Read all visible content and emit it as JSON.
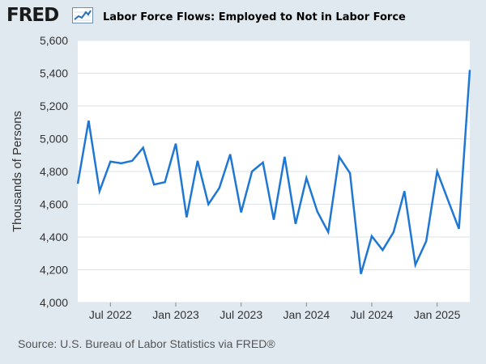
{
  "header": {
    "logo_text": "FRED",
    "logo_icon": "trend-line-icon",
    "title": "Labor Force Flows: Employed to Not in Labor Force"
  },
  "footer": {
    "source": "U.S. Bureau of Labor Statistics via FRED®"
  },
  "colors": {
    "background": "#e1e9f0",
    "plot_background": "#ffffff",
    "line": "#1f77d4",
    "grid": "#dde3e8"
  },
  "chart_data": {
    "type": "line",
    "title": "Labor Force Flows: Employed to Not in Labor Force",
    "ylabel": "Thousands of Persons",
    "xlabel": "",
    "ylim": [
      4000,
      5600
    ],
    "y_ticks": [
      4000,
      4200,
      4400,
      4600,
      4800,
      5000,
      5200,
      5400,
      5600
    ],
    "y_tick_labels": [
      "4,000",
      "4,200",
      "4,400",
      "4,600",
      "4,800",
      "5,000",
      "5,200",
      "5,400",
      "5,600"
    ],
    "x_ticks": [
      {
        "date": "2022-07",
        "label": "Jul 2022"
      },
      {
        "date": "2023-01",
        "label": "Jan 2023"
      },
      {
        "date": "2023-07",
        "label": "Jul 2023"
      },
      {
        "date": "2024-01",
        "label": "Jan 2024"
      },
      {
        "date": "2024-07",
        "label": "Jul 2024"
      },
      {
        "date": "2025-01",
        "label": "Jan 2025"
      }
    ],
    "x_range": [
      "2022-04",
      "2025-04"
    ],
    "grid": "horizontal",
    "series": [
      {
        "x": [
          "2022-04",
          "2022-05",
          "2022-06",
          "2022-07",
          "2022-08",
          "2022-09",
          "2022-10",
          "2022-11",
          "2022-12",
          "2023-01",
          "2023-02",
          "2023-03",
          "2023-04",
          "2023-05",
          "2023-06",
          "2023-07",
          "2023-08",
          "2023-09",
          "2023-10",
          "2023-11",
          "2023-12",
          "2024-01",
          "2024-02",
          "2024-03",
          "2024-04",
          "2024-05",
          "2024-06",
          "2024-07",
          "2024-08",
          "2024-09",
          "2024-10",
          "2024-11",
          "2024-12",
          "2025-01",
          "2025-02",
          "2025-03",
          "2025-04"
        ],
        "values": [
          4725,
          5110,
          4680,
          4860,
          4850,
          4865,
          4945,
          4720,
          4735,
          4970,
          4520,
          4865,
          4600,
          4700,
          4905,
          4550,
          4800,
          4855,
          4505,
          4890,
          4480,
          4760,
          4555,
          4430,
          4890,
          4790,
          4175,
          4405,
          4320,
          4430,
          4680,
          4230,
          4375,
          4800,
          4625,
          4450,
          5420
        ]
      }
    ]
  }
}
